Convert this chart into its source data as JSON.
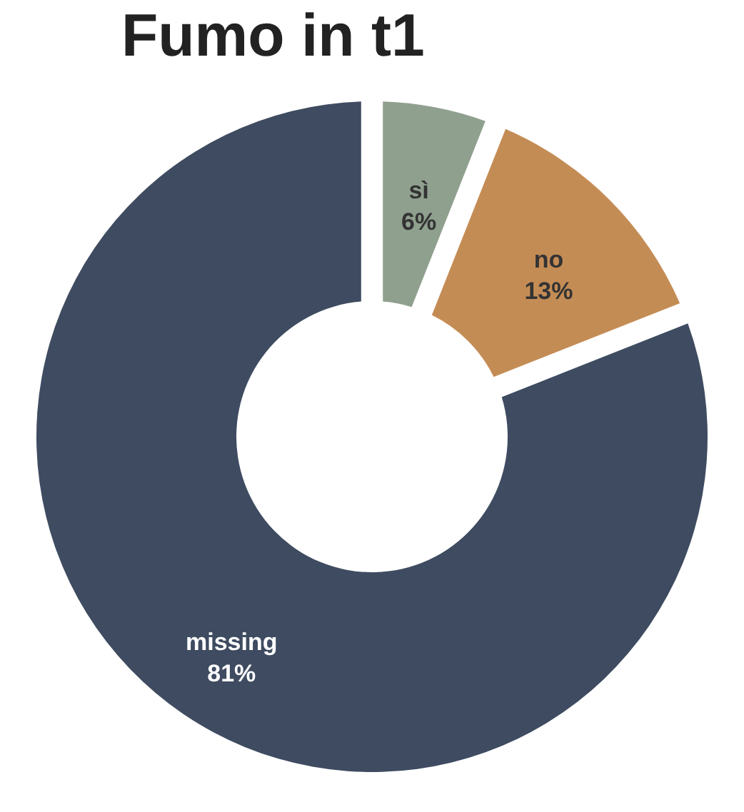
{
  "chart_data": {
    "type": "donut",
    "title": "Fumo in t1",
    "categories": [
      "sì",
      "no",
      "missing"
    ],
    "values": [
      6,
      13,
      81
    ],
    "colors": [
      "#8fa08e",
      "#c48c55",
      "#3e4b60"
    ],
    "value_labels": [
      "6%",
      "13%",
      "81%"
    ],
    "legend": false
  }
}
